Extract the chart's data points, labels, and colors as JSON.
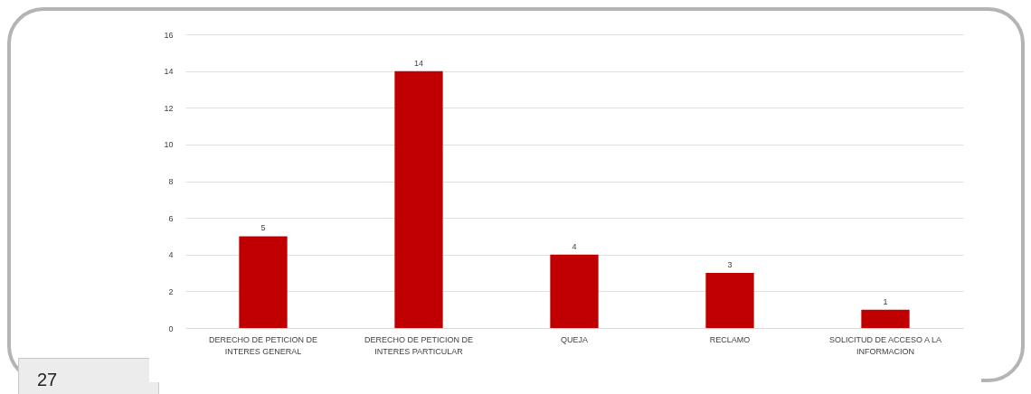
{
  "chart_data": {
    "type": "bar",
    "categories": [
      "DERECHO DE PETICION DE INTERES GENERAL",
      "DERECHO DE PETICION DE INTERES PARTICULAR",
      "QUEJA",
      "RECLAMO",
      "SOLICITUD DE ACCESO A LA INFORMACION"
    ],
    "values": [
      5,
      14,
      4,
      3,
      1
    ],
    "color": "#c00000",
    "ylim": [
      0,
      16
    ],
    "yticks": [
      0,
      2,
      4,
      6,
      8,
      10,
      12,
      14,
      16
    ],
    "grid": "y",
    "data_labels": true,
    "annotations": [
      "27"
    ]
  }
}
